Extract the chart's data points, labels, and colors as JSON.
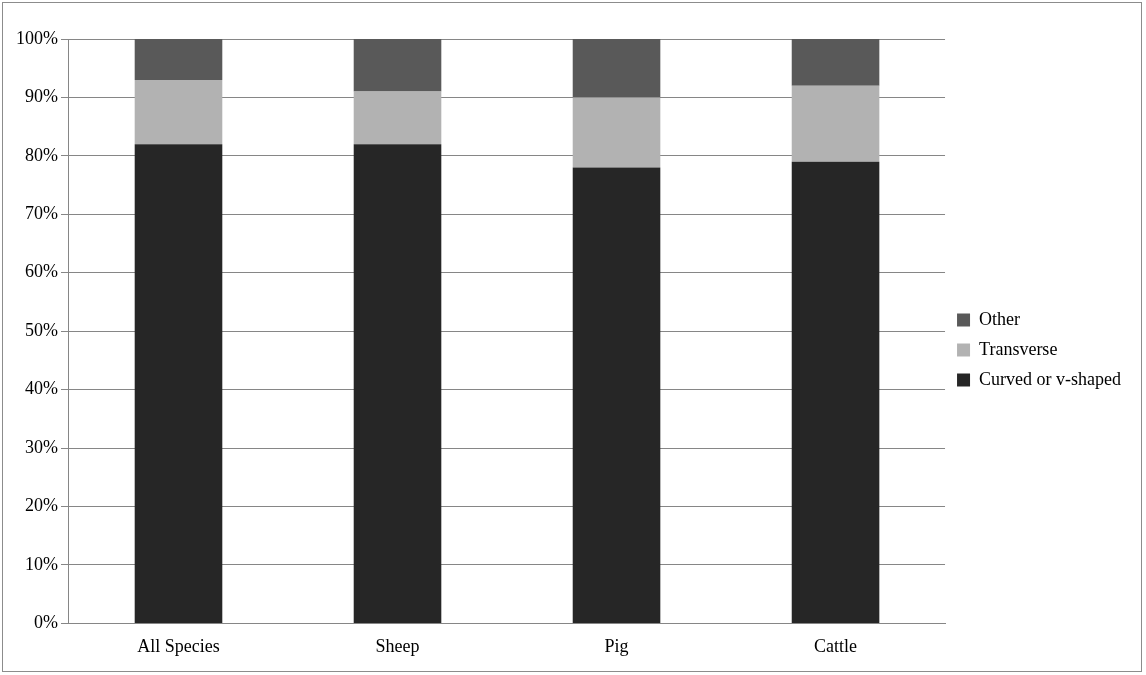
{
  "chart_data": {
    "type": "bar",
    "stacked": true,
    "categories": [
      "All Species",
      "Sheep",
      "Pig",
      "Cattle"
    ],
    "series": [
      {
        "name": "Curved or v-shaped",
        "color": "#262626",
        "values": [
          82,
          82,
          78,
          79
        ]
      },
      {
        "name": "Transverse",
        "color": "#b2b2b2",
        "values": [
          11,
          9,
          12,
          13
        ]
      },
      {
        "name": "Other",
        "color": "#595959",
        "values": [
          7,
          9,
          10,
          8
        ]
      }
    ],
    "ylim": [
      0,
      100
    ],
    "yticks": [
      {
        "value": 0,
        "label": "0%"
      },
      {
        "value": 10,
        "label": "10%"
      },
      {
        "value": 20,
        "label": "20%"
      },
      {
        "value": 30,
        "label": "30%"
      },
      {
        "value": 40,
        "label": "40%"
      },
      {
        "value": 50,
        "label": "50%"
      },
      {
        "value": 60,
        "label": "60%"
      },
      {
        "value": 70,
        "label": "70%"
      },
      {
        "value": 80,
        "label": "80%"
      },
      {
        "value": 90,
        "label": "90%"
      },
      {
        "value": 100,
        "label": "100%"
      }
    ],
    "grid": "y",
    "legend": "right"
  }
}
